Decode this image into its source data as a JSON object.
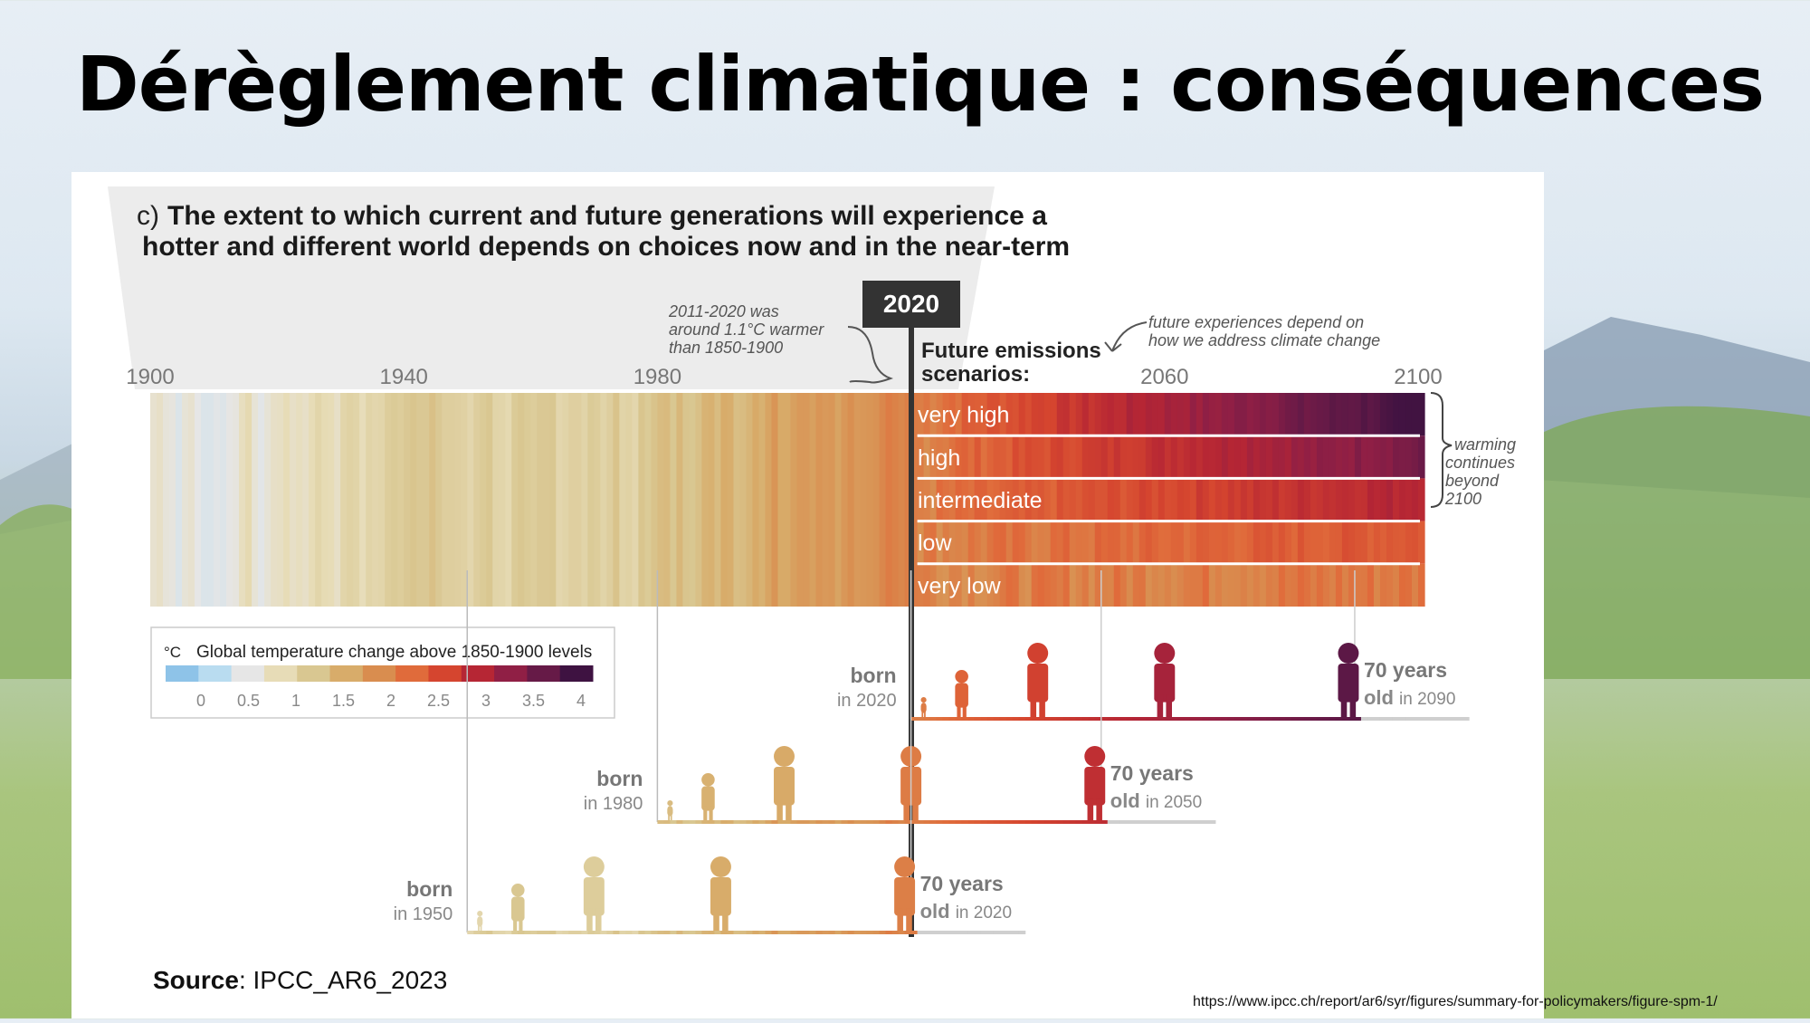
{
  "slide": {
    "title": "Dérèglement climatique : conséquences",
    "url": "https://www.ipcc.ch/report/ar6/syr/figures/summary-for-policymakers/figure-spm-1/"
  },
  "figure": {
    "panel_letter": "c)",
    "title_line1": "The extent to which current and future generations will experience a",
    "title_line2": "hotter and different world depends on choices now and in the near-term",
    "marker_year": "2020",
    "note_1": [
      "2011-2020 was",
      "around 1.1°C warmer",
      "than 1850-1900"
    ],
    "note_2": [
      "future experiences depend on",
      "how we address climate change"
    ],
    "scenarios_heading": [
      "Future emissions",
      "scenarios:"
    ],
    "warming_note": [
      "warming",
      "continues",
      "beyond",
      "2100"
    ],
    "source_label": "Source",
    "source_value": ": IPCC_AR6_2023"
  },
  "chart_data": {
    "type": "heatmap",
    "description_axis": "year",
    "x_ticks": [
      1900,
      1940,
      1980,
      2060,
      2100
    ],
    "xlim": [
      1900,
      2100
    ],
    "legend": {
      "title": "Global temperature change above 1850-1900 levels",
      "unit": "°C",
      "ticks": [
        "0",
        "0.5",
        "1",
        "1.5",
        "2",
        "2.5",
        "3",
        "3.5",
        "4"
      ],
      "colors": [
        "#8ec3e8",
        "#b9dcf0",
        "#e6e6e6",
        "#e7dcb7",
        "#d9c791",
        "#d8ac6a",
        "#d98d4f",
        "#e06b3b",
        "#d5452f",
        "#b62634",
        "#901f45",
        "#661a47",
        "#3e1241"
      ]
    },
    "historical_years": [
      1900,
      1901,
      1902,
      1903,
      1904,
      1905,
      1906,
      1907,
      1908,
      1909,
      1910,
      1911,
      1912,
      1913,
      1914,
      1915,
      1916,
      1917,
      1918,
      1919,
      1920,
      1921,
      1922,
      1923,
      1924,
      1925,
      1926,
      1927,
      1928,
      1929,
      1930,
      1931,
      1932,
      1933,
      1934,
      1935,
      1936,
      1937,
      1938,
      1939,
      1940,
      1941,
      1942,
      1943,
      1944,
      1945,
      1946,
      1947,
      1948,
      1949,
      1950,
      1951,
      1952,
      1953,
      1954,
      1955,
      1956,
      1957,
      1958,
      1959,
      1960,
      1961,
      1962,
      1963,
      1964,
      1965,
      1966,
      1967,
      1968,
      1969,
      1970,
      1971,
      1972,
      1973,
      1974,
      1975,
      1976,
      1977,
      1978,
      1979,
      1980,
      1981,
      1982,
      1983,
      1984,
      1985,
      1986,
      1987,
      1988,
      1989,
      1990,
      1991,
      1992,
      1993,
      1994,
      1995,
      1996,
      1997,
      1998,
      1999,
      2000,
      2001,
      2002,
      2003,
      2004,
      2005,
      2006,
      2007,
      2008,
      2009,
      2010,
      2011,
      2012,
      2013,
      2014,
      2015,
      2016,
      2017,
      2018,
      2019,
      2020
    ],
    "historical_values": [
      0.15,
      0.2,
      0.08,
      0.05,
      -0.05,
      0.1,
      0.15,
      0.0,
      -0.05,
      -0.05,
      -0.02,
      -0.04,
      0.02,
      0.05,
      0.25,
      0.35,
      0.1,
      -0.02,
      0.1,
      0.2,
      0.22,
      0.3,
      0.2,
      0.25,
      0.2,
      0.3,
      0.4,
      0.32,
      0.3,
      0.2,
      0.4,
      0.45,
      0.42,
      0.28,
      0.42,
      0.38,
      0.4,
      0.52,
      0.55,
      0.52,
      0.58,
      0.62,
      0.58,
      0.58,
      0.68,
      0.58,
      0.5,
      0.5,
      0.48,
      0.46,
      0.38,
      0.5,
      0.55,
      0.6,
      0.42,
      0.4,
      0.35,
      0.55,
      0.6,
      0.55,
      0.52,
      0.58,
      0.58,
      0.6,
      0.38,
      0.42,
      0.48,
      0.48,
      0.42,
      0.55,
      0.52,
      0.42,
      0.5,
      0.65,
      0.42,
      0.45,
      0.38,
      0.62,
      0.55,
      0.65,
      0.72,
      0.75,
      0.6,
      0.78,
      0.62,
      0.6,
      0.68,
      0.82,
      0.85,
      0.72,
      0.9,
      0.88,
      0.7,
      0.72,
      0.8,
      0.92,
      0.85,
      0.98,
      1.12,
      0.92,
      0.92,
      1.02,
      1.08,
      1.08,
      1.02,
      1.12,
      1.08,
      1.1,
      0.98,
      1.1,
      1.18,
      1.08,
      1.1,
      1.12,
      1.15,
      1.25,
      1.35,
      1.3,
      1.25,
      1.32,
      1.35
    ],
    "scenarios": [
      {
        "name": "very high",
        "start_2020": 1.3,
        "end_2100": 4.4
      },
      {
        "name": "high",
        "start_2020": 1.3,
        "end_2100": 3.6
      },
      {
        "name": "intermediate",
        "start_2020": 1.3,
        "end_2100": 2.7
      },
      {
        "name": "low",
        "start_2020": 1.3,
        "end_2100": 1.8
      },
      {
        "name": "very low",
        "start_2020": 1.3,
        "end_2100": 1.4
      }
    ],
    "generations": [
      {
        "born_label": "born",
        "born_year": "in 2020",
        "old_label": "70 years",
        "old_word": "old",
        "old_year": "in 2090",
        "birth": 2020,
        "age70": 2090
      },
      {
        "born_label": "born",
        "born_year": "in 1980",
        "old_label": "70 years",
        "old_word": "old",
        "old_year": "in 2050",
        "birth": 1980,
        "age70": 2050
      },
      {
        "born_label": "born",
        "born_year": "in 1950",
        "old_label": "70 years",
        "old_word": "old",
        "old_year": "in 2020",
        "birth": 1950,
        "age70": 2020
      }
    ]
  },
  "colors": {
    "background_sky": "#e7eef5",
    "panel": "#ffffff",
    "marker": "#333333"
  }
}
